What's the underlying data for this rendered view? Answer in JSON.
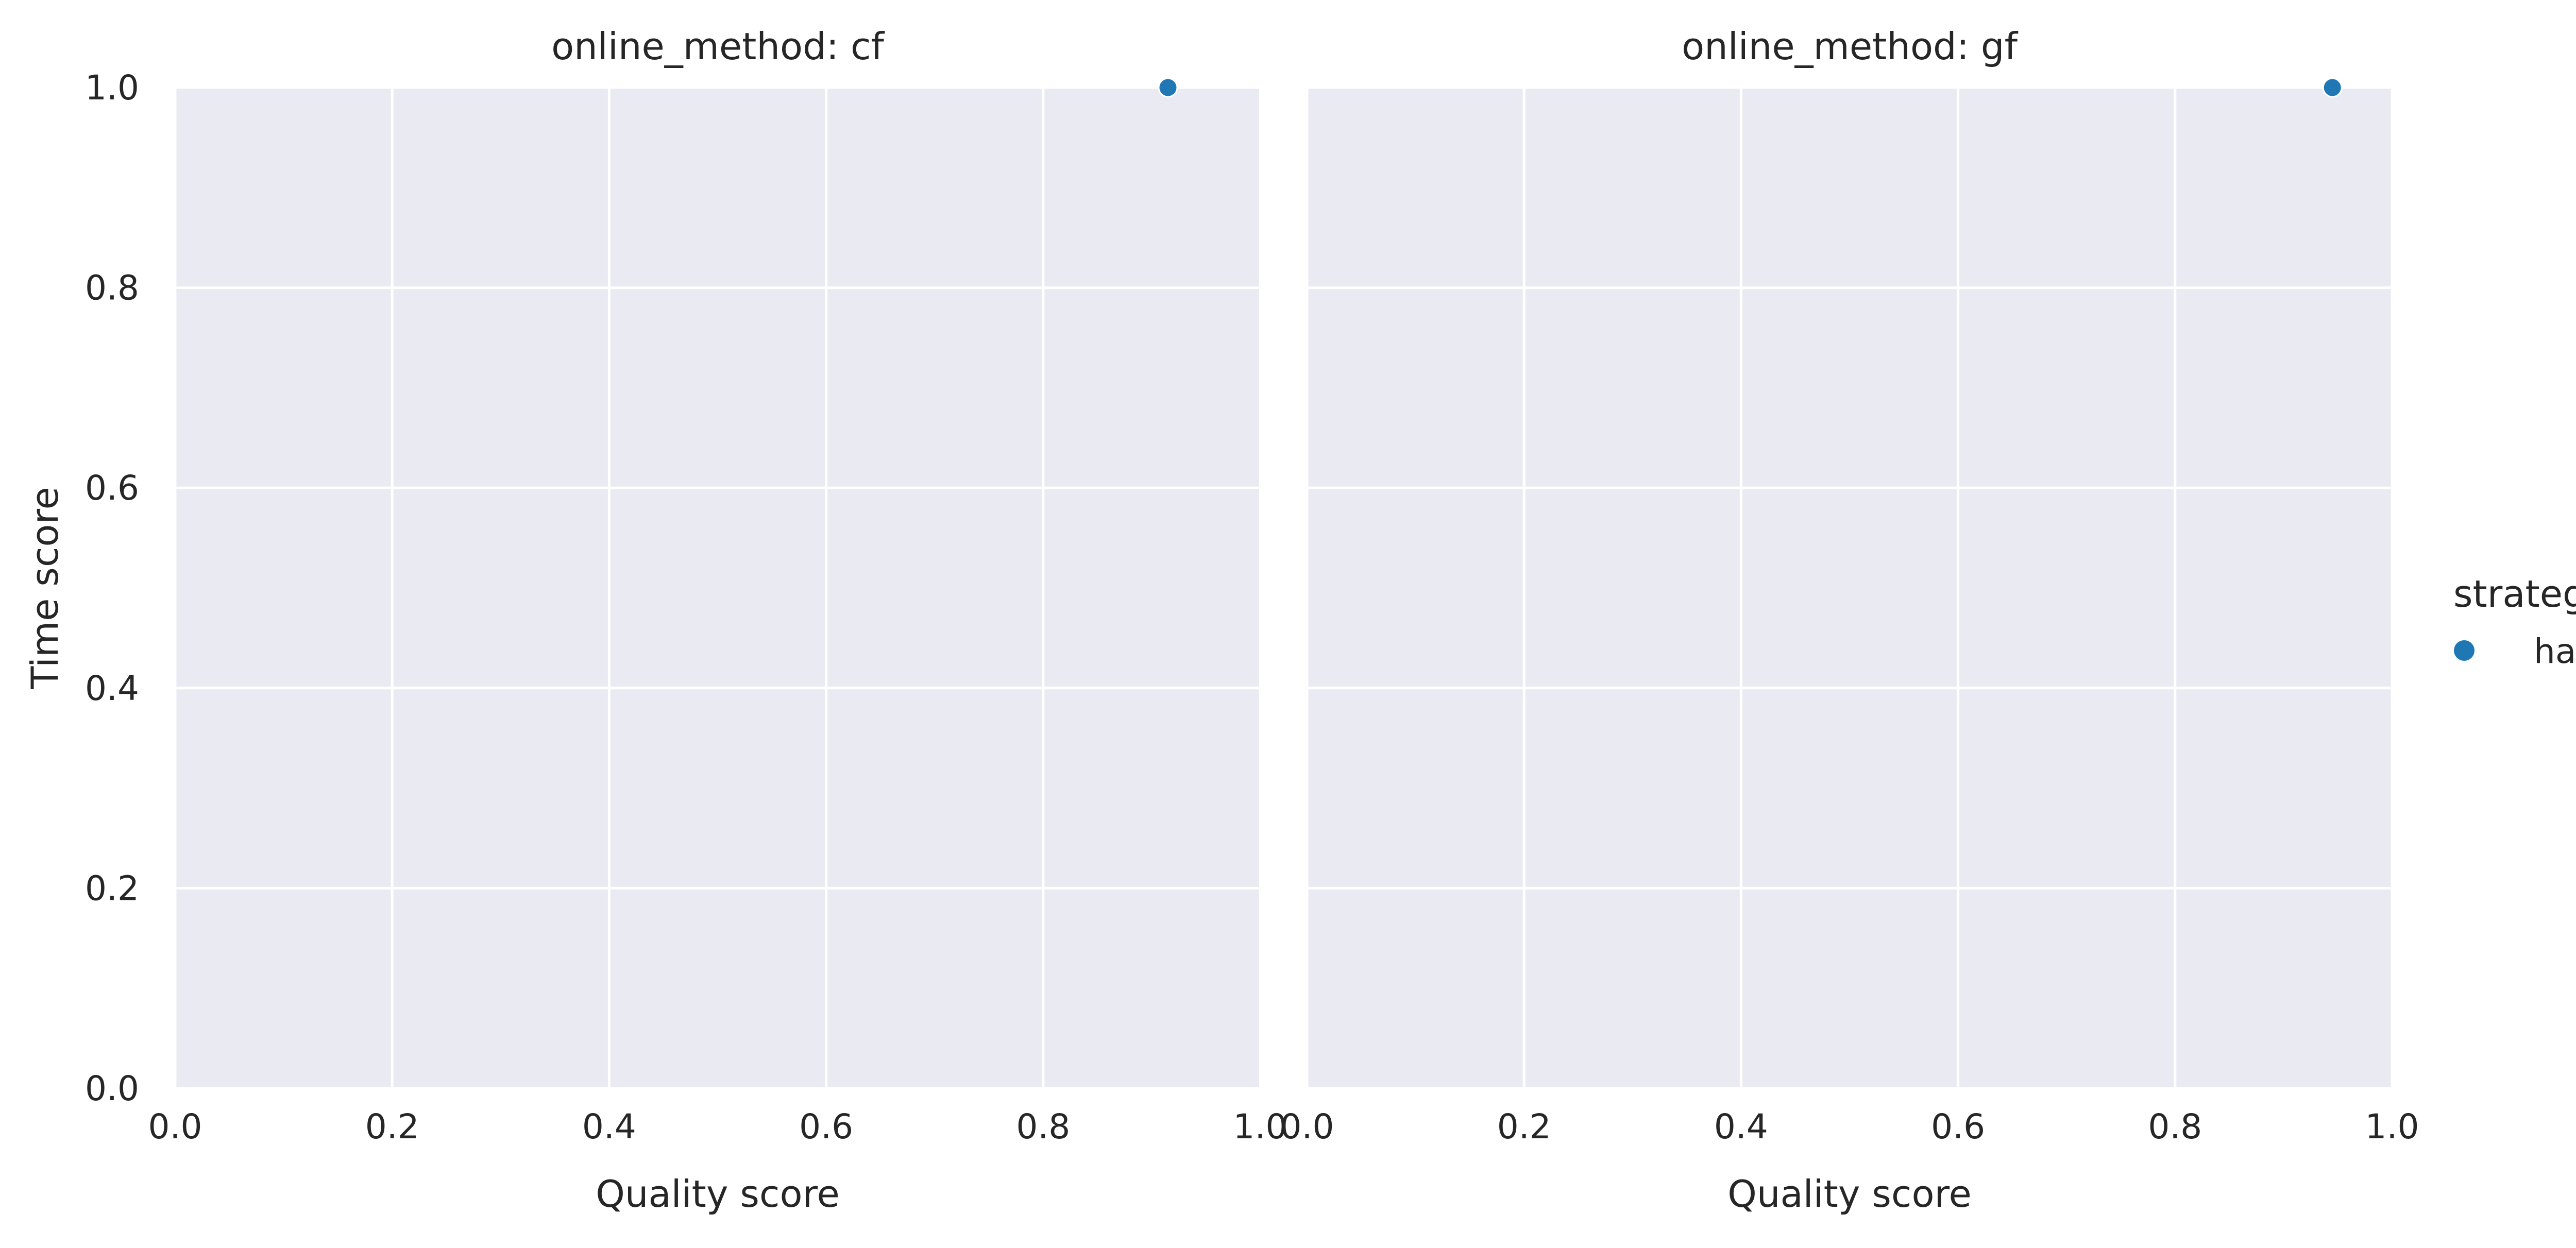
{
  "chart_data": {
    "type": "scatter",
    "facets": [
      {
        "title": "online_method: cf",
        "xlabel": "Quality score",
        "ylabel": "Time score",
        "xlim": [
          0,
          1
        ],
        "ylim": [
          0,
          1
        ],
        "x_ticks": [
          "0.0",
          "0.2",
          "0.4",
          "0.6",
          "0.8",
          "1.0"
        ],
        "y_ticks": [
          "0.0",
          "0.2",
          "0.4",
          "0.6",
          "0.8",
          "1.0"
        ],
        "series": [
          {
            "name": "hasty",
            "points": [
              {
                "x": 0.915,
                "y": 1.0
              }
            ]
          }
        ]
      },
      {
        "title": "online_method: gf",
        "xlabel": "Quality score",
        "ylabel": "",
        "xlim": [
          0,
          1
        ],
        "ylim": [
          0,
          1
        ],
        "x_ticks": [
          "0.0",
          "0.2",
          "0.4",
          "0.6",
          "0.8",
          "1.0"
        ],
        "y_ticks": [],
        "series": [
          {
            "name": "hasty",
            "points": [
              {
                "x": 0.945,
                "y": 1.0
              }
            ]
          }
        ]
      }
    ],
    "legend": {
      "title": "strategy",
      "placement": "right",
      "entries": [
        {
          "label": "hasty",
          "color": "#1f77b4"
        }
      ]
    },
    "grid": true,
    "colors": {
      "panel_background": "#eaeaf2",
      "grid": "#ffffff",
      "marker": "#1f77b4"
    }
  }
}
